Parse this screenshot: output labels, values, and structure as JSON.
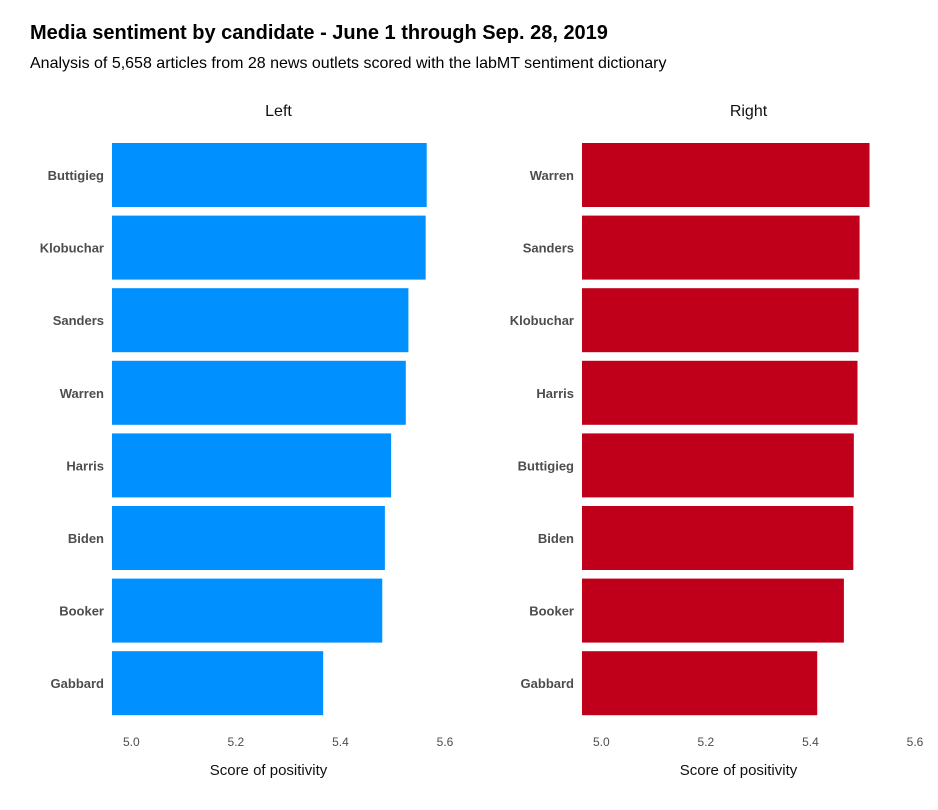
{
  "title": "Media sentiment by candidate - June 1 through Sep. 28, 2019",
  "subtitle": "Analysis of 5,658 articles from 28 news outlets scored with the labMT sentiment dictionary",
  "chart_data": [
    {
      "type": "bar",
      "orientation": "horizontal",
      "panel": "Left",
      "color": "#0090ff",
      "categories": [
        "Buttigieg",
        "Klobuchar",
        "Sanders",
        "Warren",
        "Harris",
        "Biden",
        "Booker",
        "Gabbard"
      ],
      "values": [
        5.565,
        5.563,
        5.53,
        5.525,
        5.497,
        5.485,
        5.48,
        5.367
      ],
      "xlabel": "Score of positivity",
      "xlim": [
        4.963,
        5.6
      ],
      "xticks": [
        "5.0",
        "5.2",
        "5.4",
        "5.6"
      ]
    },
    {
      "type": "bar",
      "orientation": "horizontal",
      "panel": "Right",
      "color": "#c0001a",
      "categories": [
        "Warren",
        "Sanders",
        "Klobuchar",
        "Harris",
        "Buttigieg",
        "Biden",
        "Booker",
        "Gabbard"
      ],
      "values": [
        5.513,
        5.494,
        5.492,
        5.49,
        5.483,
        5.482,
        5.464,
        5.413
      ],
      "xlabel": "Score of positivity",
      "xlim": [
        4.963,
        5.6
      ],
      "xticks": [
        "5.0",
        "5.2",
        "5.4",
        "5.6"
      ]
    }
  ]
}
